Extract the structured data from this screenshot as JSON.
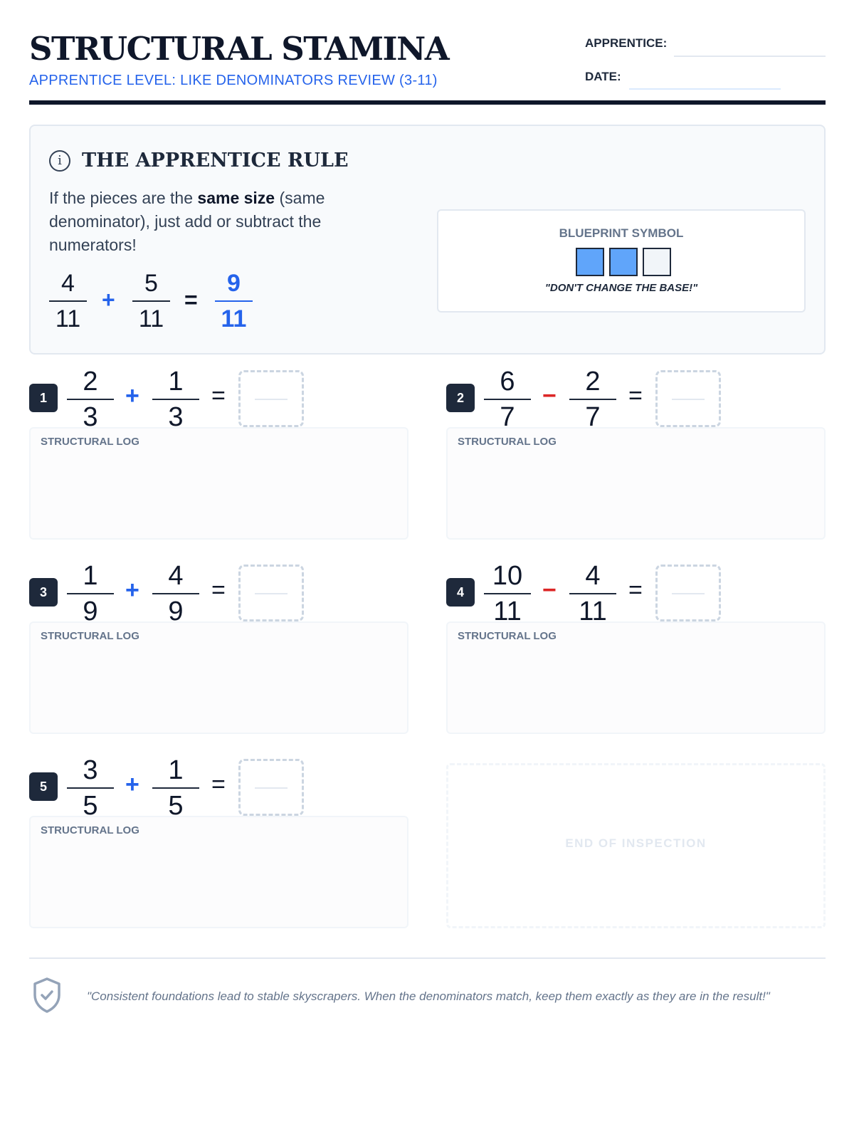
{
  "header": {
    "title": "STRUCTURAL STAMINA",
    "subtitle": "APPRENTICE LEVEL: LIKE DENOMINATORS REVIEW (3-11)",
    "apprentice_label": "APPRENTICE:",
    "date_label": "DATE:"
  },
  "rule": {
    "icon": "info-icon",
    "title": "THE APPRENTICE RULE",
    "text_before": "If the pieces are the ",
    "text_bold": "same size",
    "text_after": " (same denominator), just add or subtract the numerators!",
    "example": {
      "a_num": "4",
      "a_den": "11",
      "op": "+",
      "b_num": "5",
      "b_den": "11",
      "eq": "=",
      "r_num": "9",
      "r_den": "11"
    },
    "blueprint": {
      "title": "BLUEPRINT SYMBOL",
      "filled": 2,
      "total": 3,
      "quote": "\"DON'T CHANGE THE BASE!\""
    }
  },
  "problems": [
    {
      "n": "1",
      "a_num": "2",
      "a_den": "3",
      "op": "+",
      "b_num": "1",
      "b_den": "3",
      "eq": "=",
      "log": "STRUCTURAL LOG"
    },
    {
      "n": "2",
      "a_num": "6",
      "a_den": "7",
      "op": "−",
      "b_num": "2",
      "b_den": "7",
      "eq": "=",
      "log": "STRUCTURAL LOG"
    },
    {
      "n": "3",
      "a_num": "1",
      "a_den": "9",
      "op": "+",
      "b_num": "4",
      "b_den": "9",
      "eq": "=",
      "log": "STRUCTURAL LOG"
    },
    {
      "n": "4",
      "a_num": "10",
      "a_den": "11",
      "op": "−",
      "b_num": "4",
      "b_den": "11",
      "eq": "=",
      "log": "STRUCTURAL LOG"
    },
    {
      "n": "5",
      "a_num": "3",
      "a_den": "5",
      "op": "+",
      "b_num": "1",
      "b_den": "5",
      "eq": "=",
      "log": "STRUCTURAL LOG"
    }
  ],
  "end_label": "END OF INSPECTION",
  "footer": {
    "icon": "shield-check-icon",
    "quote": "\"Consistent foundations lead to stable skyscrapers. When the denominators match, keep them exactly as they are in the result!\""
  },
  "colors": {
    "accent": "#2563eb",
    "plus": "#2563eb",
    "minus": "#dc2626",
    "dark": "#1e293b",
    "blueprint_fill": "#60a5fa"
  }
}
